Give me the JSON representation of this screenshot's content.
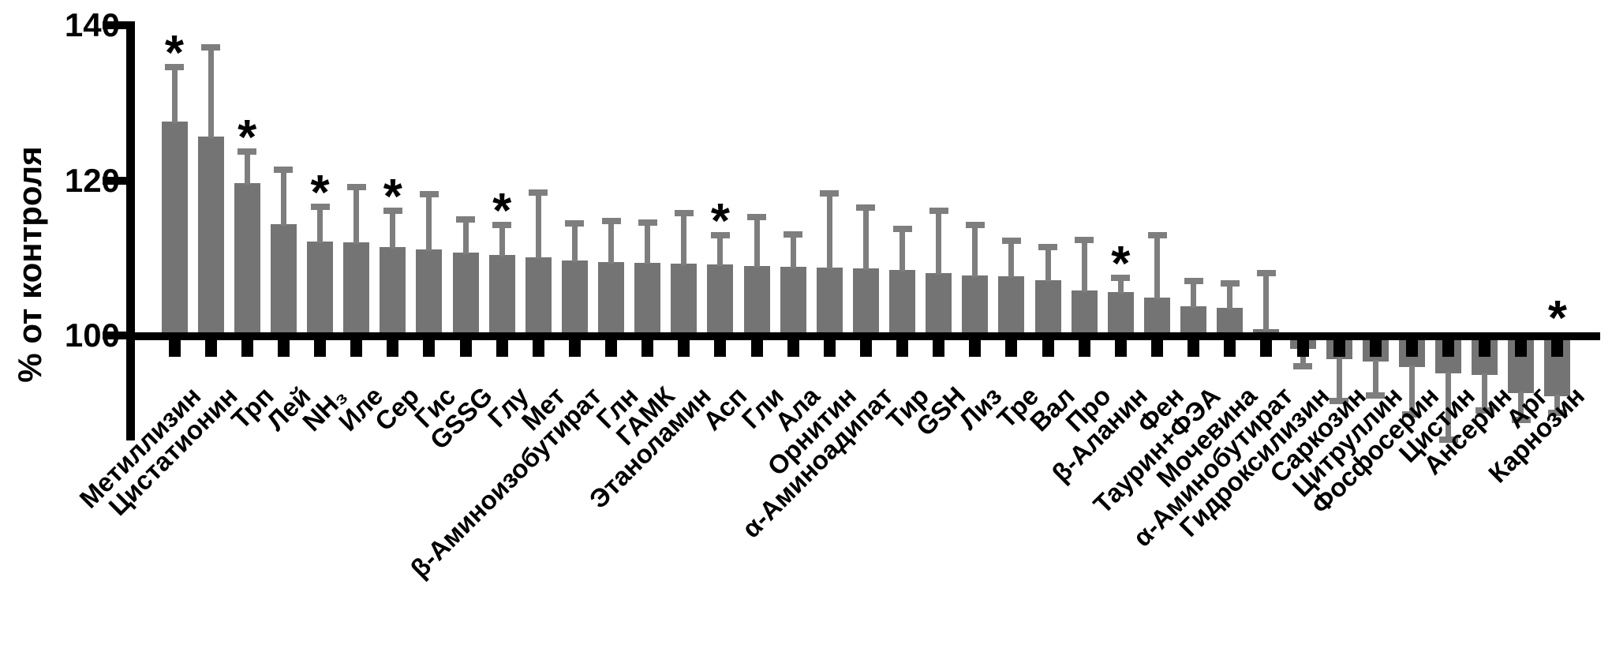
{
  "chart_data": {
    "type": "bar",
    "title": "",
    "ylabel": "% от контроля",
    "baseline": 100,
    "ylim": [
      85,
      140
    ],
    "yticks": [
      140,
      120,
      100
    ],
    "grid": false,
    "legend_position": "none",
    "bar_color": "#747474",
    "error_color": "#7e7e7e",
    "axis_color": "#000000",
    "significance_marker": "*",
    "categories": [
      "Метиллизин",
      "Цистатионин",
      "Трп",
      "Лей",
      "NH₃",
      "Иле",
      "Сер",
      "Гис",
      "GSSG",
      "Глу",
      "Мет",
      "β-Аминоизобутират",
      "Глн",
      "ГАМК",
      "Этаноламин",
      "Асп",
      "Гли",
      "Ала",
      "Орнитин",
      "α-Аминоадипат",
      "Тир",
      "GSH",
      "Лиз",
      "Тре",
      "Вал",
      "Про",
      "β-Аланин",
      "Фен",
      "Таурин+ФЭА",
      "Мочевина",
      "α-Аминобутират",
      "Гидроксилизин",
      "Саркозин",
      "Цитруллин",
      "Фосфосерин",
      "Цистин",
      "Ансерин",
      "Арг",
      "Карнозин"
    ],
    "values": [
      127.6,
      125.6,
      119.6,
      114.4,
      112.1,
      112.0,
      111.4,
      111.1,
      110.7,
      110.4,
      110.1,
      109.7,
      109.5,
      109.4,
      109.3,
      109.2,
      109.0,
      108.9,
      108.8,
      108.7,
      108.4,
      108.0,
      107.7,
      107.6,
      107.1,
      105.8,
      105.6,
      104.9,
      103.8,
      103.6,
      100.8,
      98.3,
      96.9,
      96.6,
      95.9,
      95.1,
      94.9,
      92.6,
      92.2
    ],
    "error_to": [
      134.6,
      137.1,
      123.7,
      121.4,
      116.6,
      119.1,
      116.1,
      118.2,
      115.0,
      114.3,
      118.4,
      114.5,
      114.8,
      114.6,
      115.8,
      112.9,
      115.3,
      113.0,
      118.3,
      116.5,
      113.7,
      116.1,
      114.2,
      112.2,
      111.4,
      112.3,
      107.4,
      112.9,
      107.0,
      106.7,
      108.0,
      96.0,
      91.6,
      92.3,
      89.8,
      86.6,
      90.3,
      89.1,
      90.0
    ],
    "significant": [
      true,
      false,
      true,
      false,
      true,
      false,
      true,
      false,
      false,
      true,
      false,
      false,
      false,
      false,
      false,
      true,
      false,
      false,
      false,
      false,
      false,
      false,
      false,
      false,
      false,
      false,
      true,
      false,
      false,
      false,
      false,
      false,
      false,
      false,
      false,
      false,
      false,
      false,
      true
    ]
  }
}
